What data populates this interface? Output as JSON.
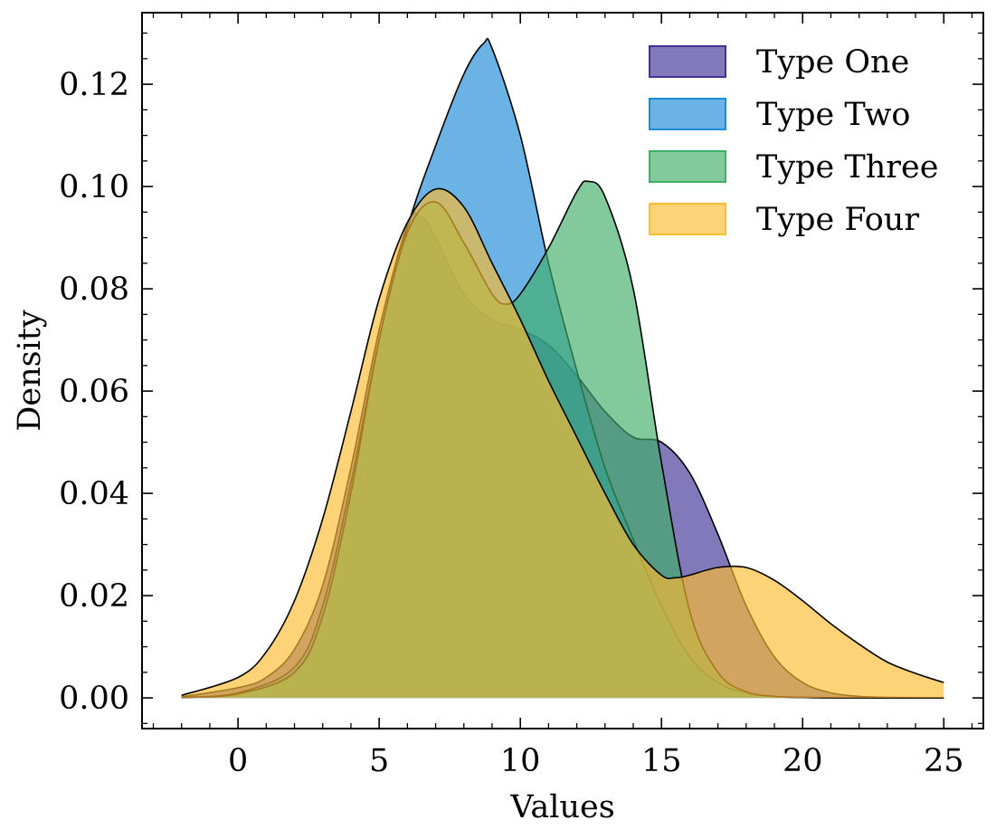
{
  "chart_data": {
    "type": "area",
    "xlabel": "Values",
    "ylabel": "Density",
    "xlim": [
      -3.4,
      26.4
    ],
    "ylim": [
      -0.006,
      0.134
    ],
    "xticks": [
      0,
      5,
      10,
      15,
      20,
      25
    ],
    "xtick_labels": [
      "0",
      "5",
      "10",
      "15",
      "20",
      "25"
    ],
    "yticks": [
      0.0,
      0.02,
      0.04,
      0.06,
      0.08,
      0.1,
      0.12
    ],
    "ytick_labels": [
      "0.00",
      "0.02",
      "0.04",
      "0.06",
      "0.08",
      "0.10",
      "0.12"
    ],
    "legend_position": "top-right",
    "grid": false,
    "series": [
      {
        "name": "Type One",
        "color": "#3f3197",
        "x": [
          -2,
          0,
          1,
          2,
          3,
          4,
          5,
          6,
          6.5,
          7,
          8,
          9,
          10,
          11,
          12,
          13,
          14,
          15,
          16,
          17,
          18,
          19,
          20,
          21,
          22,
          23,
          25
        ],
        "values": [
          0.0002,
          0.002,
          0.004,
          0.0095,
          0.022,
          0.045,
          0.072,
          0.0925,
          0.094,
          0.09,
          0.079,
          0.074,
          0.072,
          0.069,
          0.063,
          0.056,
          0.051,
          0.05,
          0.044,
          0.032,
          0.018,
          0.008,
          0.003,
          0.001,
          0.0003,
          0.0001,
          0.0
        ]
      },
      {
        "name": "Type Two",
        "color": "#1a8bd6",
        "x": [
          -2,
          0,
          2,
          3,
          4,
          5,
          6,
          7,
          8,
          8.7,
          9,
          10,
          11,
          12,
          13,
          14,
          15,
          16,
          17,
          18,
          19,
          20,
          21,
          25
        ],
        "values": [
          0.0001,
          0.001,
          0.006,
          0.018,
          0.042,
          0.07,
          0.092,
          0.108,
          0.122,
          0.128,
          0.127,
          0.11,
          0.085,
          0.064,
          0.045,
          0.031,
          0.018,
          0.008,
          0.003,
          0.001,
          0.0003,
          0.0001,
          0.0,
          0.0
        ]
      },
      {
        "name": "Type Three",
        "color": "#3fae67",
        "x": [
          -2,
          0,
          2,
          3,
          4,
          5,
          6,
          7,
          8,
          9,
          9.5,
          10,
          11,
          12,
          12.4,
          13,
          14,
          15,
          16,
          17,
          18,
          19,
          20,
          22,
          25
        ],
        "values": [
          0.0001,
          0.0008,
          0.005,
          0.016,
          0.04,
          0.07,
          0.091,
          0.097,
          0.089,
          0.079,
          0.077,
          0.079,
          0.088,
          0.099,
          0.101,
          0.098,
          0.08,
          0.046,
          0.017,
          0.005,
          0.0012,
          0.0003,
          0.0001,
          0.0,
          0.0
        ]
      },
      {
        "name": "Type Four",
        "color": "#fdbb2f",
        "x": [
          -2,
          0,
          1,
          2,
          3,
          4,
          5,
          6,
          7,
          8,
          9,
          10,
          11,
          12,
          13,
          14,
          15,
          15.5,
          16,
          17,
          18,
          19,
          20,
          21,
          22,
          23,
          24,
          25
        ],
        "values": [
          0.0005,
          0.004,
          0.009,
          0.019,
          0.035,
          0.056,
          0.078,
          0.093,
          0.0995,
          0.096,
          0.085,
          0.074,
          0.062,
          0.051,
          0.04,
          0.03,
          0.024,
          0.0235,
          0.024,
          0.0255,
          0.0255,
          0.023,
          0.019,
          0.0145,
          0.0105,
          0.007,
          0.0048,
          0.003
        ]
      }
    ]
  }
}
